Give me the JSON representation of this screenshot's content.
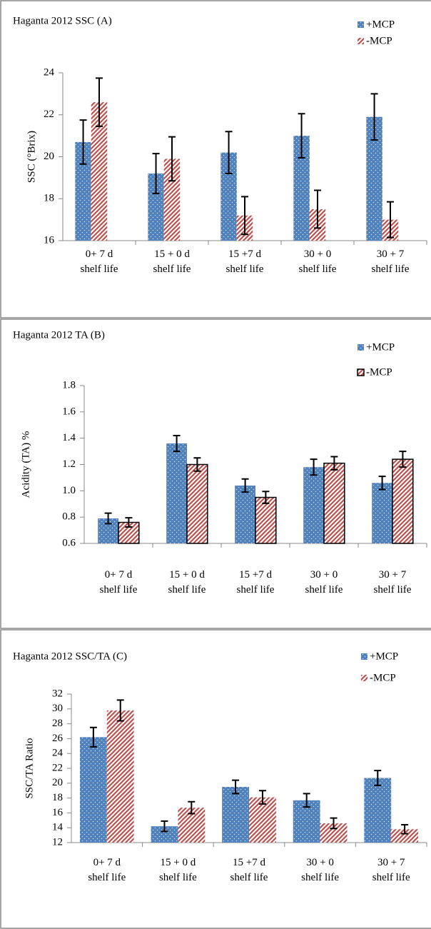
{
  "chart_data": [
    {
      "type": "bar",
      "title": "Haganta 2012 SSC (A)",
      "y_label": "SSC (°Brix)",
      "categories": [
        "0+ 7 d\nshelf life",
        "15 + 0 d\nshelf life",
        "15 +7 d\nshelf life",
        "30 + 0\nshelf life",
        "30 + 7\nshelf life"
      ],
      "series": [
        {
          "name": "+MCP",
          "color": "#4f81bd",
          "values": [
            20.7,
            19.2,
            20.2,
            21.0,
            21.9
          ],
          "errors": [
            1.05,
            0.95,
            1.0,
            1.05,
            1.1
          ]
        },
        {
          "name": "-MCP",
          "color": "#c0504d",
          "values": [
            22.6,
            19.9,
            17.2,
            17.5,
            17.0
          ],
          "errors": [
            1.15,
            1.05,
            0.9,
            0.9,
            0.85
          ]
        }
      ],
      "ylim": [
        16,
        24
      ],
      "yticks": [
        16,
        18,
        20,
        22,
        24
      ]
    },
    {
      "type": "bar",
      "title": "Haganta 2012 TA (B)",
      "y_label": "Acidity (TA) %",
      "categories": [
        "0+ 7 d\nshelf life",
        "15 + 0 d\nshelf life",
        "15 +7 d\nshelf life",
        "30 + 0\nshelf life",
        "30 + 7\nshelf life"
      ],
      "series": [
        {
          "name": "+MCP",
          "color": "#4f81bd",
          "values": [
            0.79,
            1.36,
            1.04,
            1.18,
            1.06
          ],
          "errors": [
            0.04,
            0.06,
            0.05,
            0.06,
            0.05
          ]
        },
        {
          "name": "-MCP",
          "color": "#c0504d",
          "values": [
            0.76,
            1.2,
            0.95,
            1.21,
            1.24
          ],
          "errors": [
            0.035,
            0.05,
            0.045,
            0.05,
            0.06
          ]
        }
      ],
      "ylim": [
        0.6,
        1.8
      ],
      "yticks": [
        0.6,
        0.8,
        {
          "value": 1.0,
          "label": "1.0"
        },
        1.2,
        1.4,
        1.6,
        1.8
      ]
    },
    {
      "type": "bar",
      "title": "Haganta 2012 SSC/TA (C)",
      "y_label": "SSC/TA Ratio",
      "categories": [
        "0+ 7 d\nshelf life",
        "15 + 0 d\nshelf life",
        "15 +7 d\nshelf life",
        "30 + 0\nshelf life",
        "30 + 7\nshelf life"
      ],
      "series": [
        {
          "name": "+MCP",
          "color": "#4f81bd",
          "values": [
            26.2,
            14.2,
            19.5,
            17.7,
            20.7
          ],
          "errors": [
            1.3,
            0.7,
            0.9,
            0.9,
            1.0
          ]
        },
        {
          "name": "-MCP",
          "color": "#c0504d",
          "values": [
            29.8,
            16.7,
            18.1,
            14.6,
            13.8
          ],
          "errors": [
            1.4,
            0.8,
            0.9,
            0.7,
            0.6
          ]
        }
      ],
      "ylim": [
        12,
        32
      ],
      "yticks": [
        12,
        14,
        16,
        18,
        20,
        22,
        24,
        26,
        28,
        30,
        32
      ]
    }
  ]
}
